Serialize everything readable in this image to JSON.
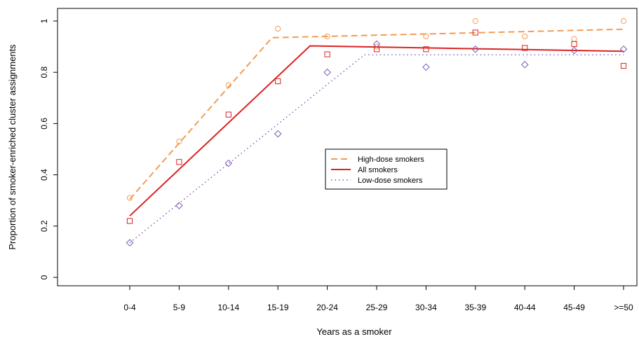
{
  "chart_data": {
    "type": "scatter",
    "title": "",
    "xlabel": "Years as a smoker",
    "ylabel": "Proportion of smoker-enriched cluster assignments",
    "categories": [
      "0-4",
      "5-9",
      "10-14",
      "15-19",
      "20-24",
      "25-29",
      "30-34",
      "35-39",
      "40-44",
      "45-49",
      ">=50"
    ],
    "yticks": [
      0,
      0.2,
      0.4,
      0.6,
      0.8,
      1
    ],
    "ylim": [
      -0.03,
      1.05
    ],
    "grid": false,
    "legend_position": "center",
    "series": [
      {
        "name": "High-dose smokers",
        "color": "#f39c52",
        "marker": "circle",
        "line_style": "dashed",
        "values": [
          0.31,
          0.53,
          0.75,
          0.97,
          0.94,
          0.9,
          0.94,
          1.0,
          0.94,
          0.93,
          1.0
        ],
        "fit": [
          {
            "x": 0,
            "y": 0.305
          },
          {
            "x": 2.88,
            "y": 0.935
          },
          {
            "x": 10,
            "y": 0.968
          }
        ]
      },
      {
        "name": "All smokers",
        "color": "#dd2222",
        "marker": "square",
        "line_style": "solid",
        "values": [
          0.22,
          0.45,
          0.635,
          0.765,
          0.87,
          0.89,
          0.89,
          0.955,
          0.895,
          0.91,
          0.825
        ],
        "fit": [
          {
            "x": 0,
            "y": 0.24
          },
          {
            "x": 3.65,
            "y": 0.903
          },
          {
            "x": 10,
            "y": 0.882
          }
        ]
      },
      {
        "name": "Low-dose smokers",
        "color": "#7b5ab8",
        "marker": "diamond",
        "line_style": "dotted",
        "values": [
          0.135,
          0.28,
          0.445,
          0.56,
          0.8,
          0.91,
          0.82,
          0.89,
          0.83,
          0.885,
          0.89
        ],
        "fit": [
          {
            "x": 0,
            "y": 0.135
          },
          {
            "x": 4.75,
            "y": 0.868
          },
          {
            "x": 10,
            "y": 0.868
          }
        ]
      }
    ]
  }
}
